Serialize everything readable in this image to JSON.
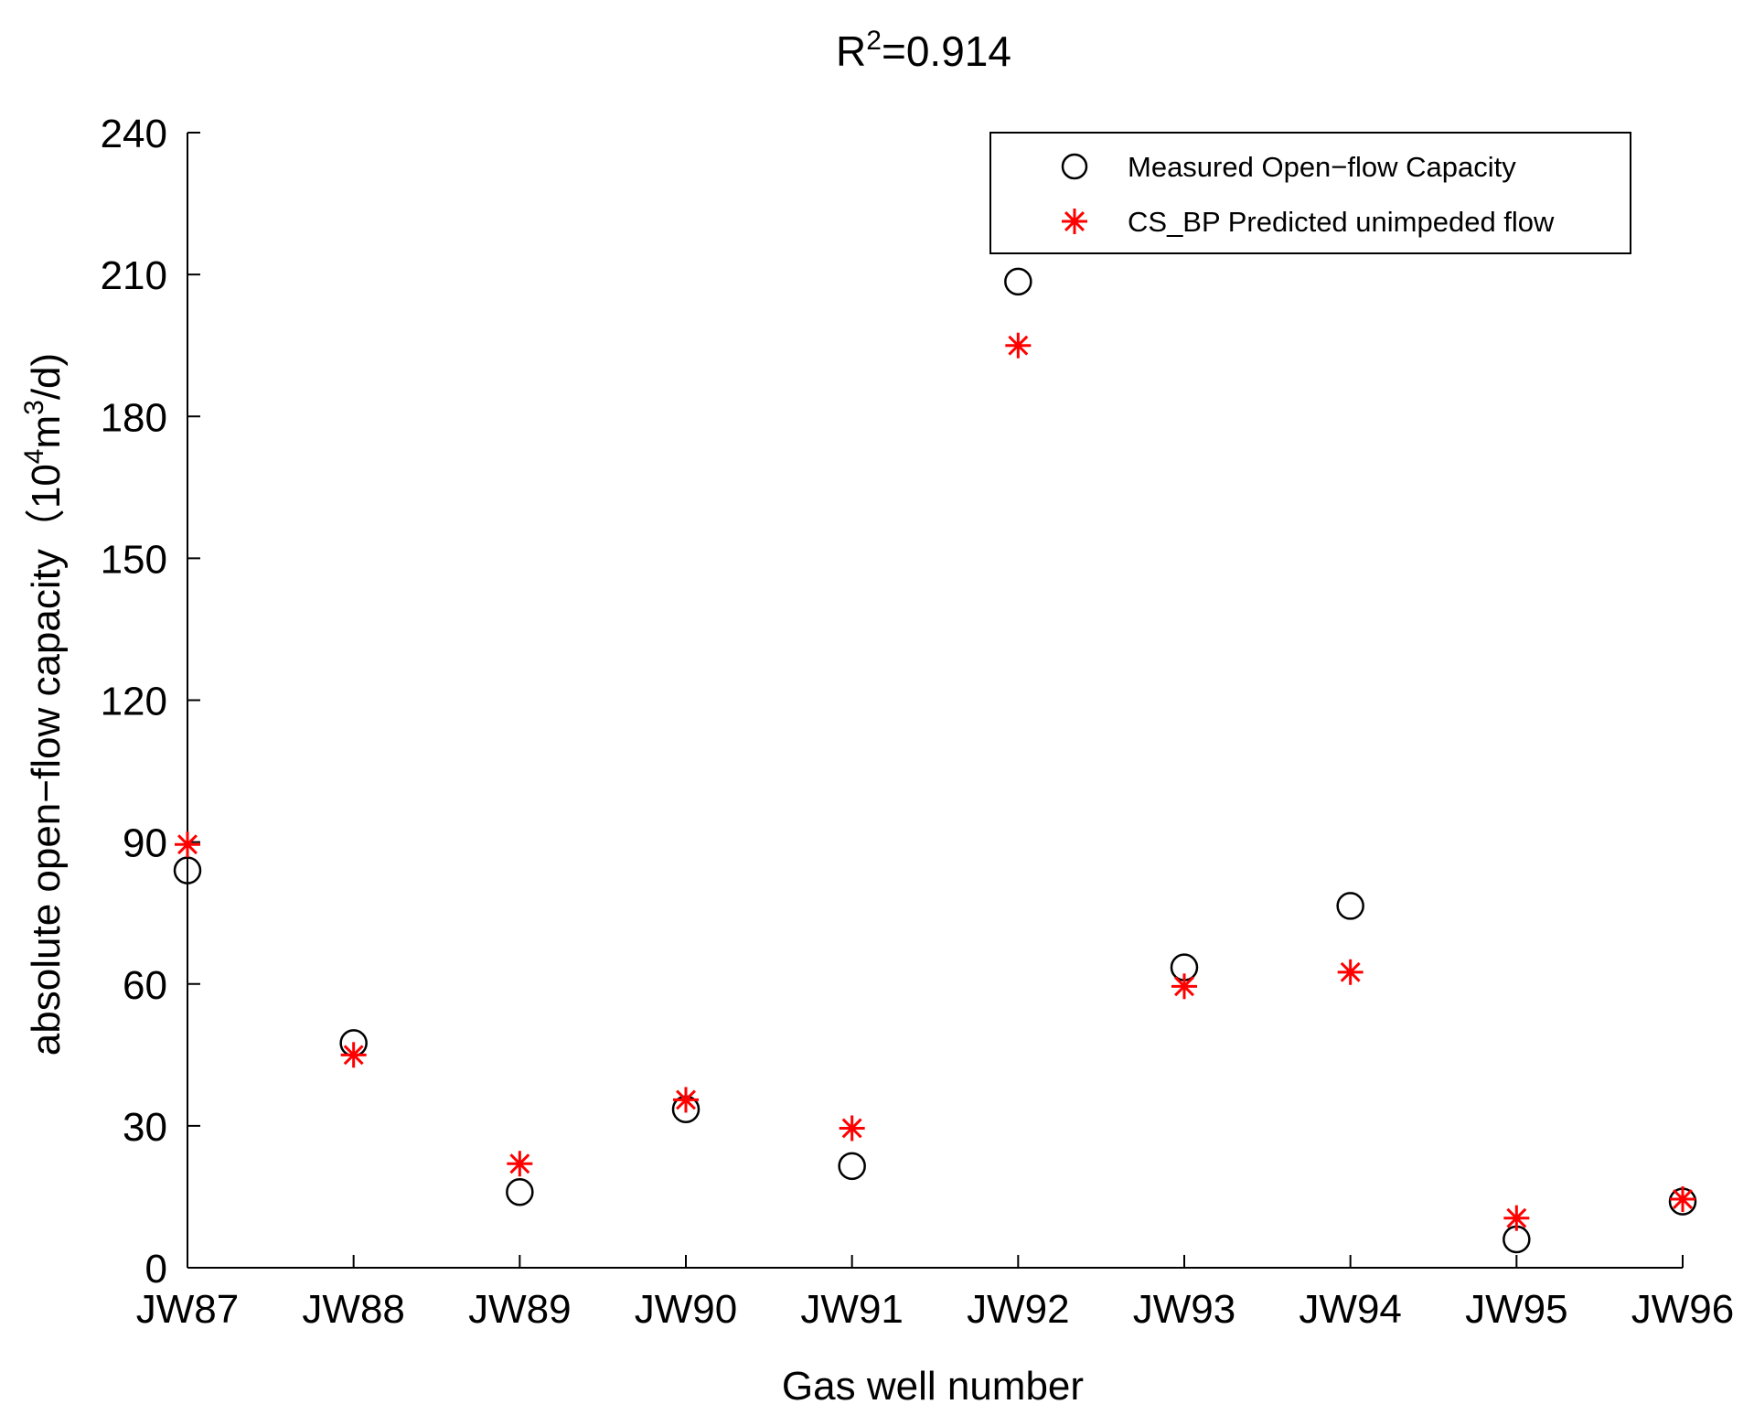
{
  "chart_data": {
    "type": "scatter",
    "title_base": "R",
    "title_sup": "2",
    "title_rest": "=0.914",
    "xlabel": "Gas well number",
    "ylabel": {
      "main": "absolute open−flow capacity",
      "unit_open": "（10",
      "unit_sup1": "4",
      "unit_mid": "m",
      "unit_sup2": "3",
      "unit_close": "/d)"
    },
    "categories": [
      "JW87",
      "JW88",
      "JW89",
      "JW90",
      "JW91",
      "JW92",
      "JW93",
      "JW94",
      "JW95",
      "JW96"
    ],
    "ylim": [
      0,
      240
    ],
    "yticks": [
      0,
      30,
      60,
      90,
      120,
      150,
      180,
      210,
      240
    ],
    "legend_position": "top-right",
    "series": [
      {
        "name": "Measured Open−flow Capacity",
        "marker": "circle",
        "color": "#000000",
        "values": [
          84,
          47.5,
          16,
          33.5,
          21.5,
          208.5,
          63.5,
          76.5,
          6,
          14
        ]
      },
      {
        "name": "CS_BP Predicted unimpeded flow",
        "marker": "asterisk",
        "color": "#ff0000",
        "values": [
          89.5,
          45,
          22,
          35.5,
          29.5,
          195,
          59.5,
          62.5,
          10.5,
          14.5
        ]
      }
    ]
  }
}
